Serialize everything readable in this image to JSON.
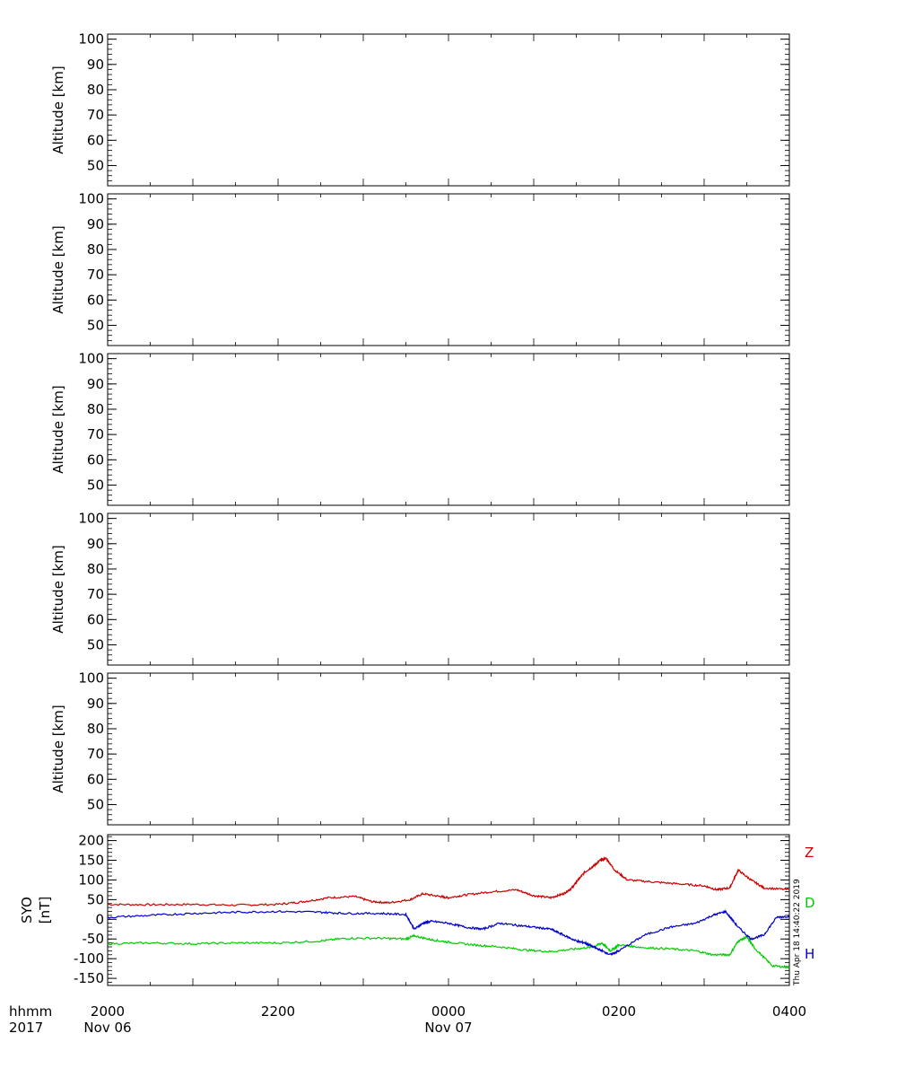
{
  "chart_data": [
    {
      "type": "heatmap",
      "ylabel": "Altitude  [km]",
      "yticks": [
        50,
        60,
        70,
        80,
        90,
        100
      ],
      "ylim": [
        42,
        102
      ],
      "xlim_hours": [
        20,
        28
      ],
      "data": []
    },
    {
      "type": "heatmap",
      "ylabel": "Altitude  [km]",
      "yticks": [
        50,
        60,
        70,
        80,
        90,
        100
      ],
      "ylim": [
        42,
        102
      ],
      "xlim_hours": [
        20,
        28
      ],
      "data": []
    },
    {
      "type": "heatmap",
      "ylabel": "Altitude  [km]",
      "yticks": [
        50,
        60,
        70,
        80,
        90,
        100
      ],
      "ylim": [
        42,
        102
      ],
      "xlim_hours": [
        20,
        28
      ],
      "data": []
    },
    {
      "type": "heatmap",
      "ylabel": "Altitude  [km]",
      "yticks": [
        50,
        60,
        70,
        80,
        90,
        100
      ],
      "ylim": [
        42,
        102
      ],
      "xlim_hours": [
        20,
        28
      ],
      "data": []
    },
    {
      "type": "heatmap",
      "ylabel": "Altitude  [km]",
      "yticks": [
        50,
        60,
        70,
        80,
        90,
        100
      ],
      "ylim": [
        42,
        102
      ],
      "xlim_hours": [
        20,
        28
      ],
      "data": []
    },
    {
      "type": "line",
      "ylabel_station": "SYO",
      "ylabel_unit": "[nT]",
      "yticks": [
        -150,
        -100,
        -50,
        0,
        50,
        100,
        150,
        200
      ],
      "ylim": [
        -168,
        215
      ],
      "xlim_hours": [
        20,
        28
      ],
      "series": [
        {
          "name": "Z",
          "color": "#cc0000",
          "x": [
            20.0,
            20.5,
            21.0,
            21.5,
            22.0,
            22.3,
            22.6,
            22.9,
            23.1,
            23.3,
            23.55,
            23.7,
            23.9,
            24.0,
            24.2,
            24.5,
            24.8,
            25.0,
            25.2,
            25.35,
            25.45,
            25.52,
            25.6,
            25.7,
            25.78,
            25.85,
            25.95,
            26.1,
            26.4,
            26.7,
            27.0,
            27.15,
            27.3,
            27.4,
            27.55,
            27.7,
            28.0
          ],
          "y": [
            38,
            37,
            38,
            36,
            38,
            45,
            55,
            58,
            45,
            42,
            50,
            65,
            58,
            55,
            62,
            70,
            75,
            60,
            55,
            65,
            80,
            100,
            120,
            135,
            150,
            155,
            125,
            100,
            95,
            90,
            85,
            75,
            80,
            125,
            100,
            80,
            75
          ]
        },
        {
          "name": "D",
          "color": "#00cc00",
          "x": [
            20.0,
            20.5,
            21.0,
            21.5,
            22.0,
            22.5,
            22.8,
            23.2,
            23.5,
            23.6,
            23.8,
            24.0,
            24.3,
            24.6,
            24.9,
            25.2,
            25.5,
            25.7,
            25.8,
            25.9,
            26.0,
            26.3,
            26.6,
            26.9,
            27.1,
            27.3,
            27.4,
            27.5,
            27.6,
            27.8,
            28.0
          ],
          "y": [
            -62,
            -60,
            -62,
            -60,
            -60,
            -55,
            -48,
            -48,
            -50,
            -42,
            -52,
            -58,
            -65,
            -70,
            -78,
            -82,
            -75,
            -70,
            -60,
            -80,
            -65,
            -72,
            -75,
            -80,
            -90,
            -90,
            -55,
            -45,
            -75,
            -118,
            -122
          ]
        },
        {
          "name": "H",
          "color": "#0000cc",
          "x": [
            20.0,
            20.5,
            21.0,
            21.5,
            22.0,
            22.5,
            22.8,
            23.2,
            23.5,
            23.6,
            23.7,
            23.8,
            24.0,
            24.2,
            24.4,
            24.6,
            24.8,
            25.0,
            25.2,
            25.35,
            25.5,
            25.6,
            25.7,
            25.8,
            25.9,
            26.0,
            26.3,
            26.6,
            26.9,
            27.1,
            27.25,
            27.4,
            27.55,
            27.7,
            27.85,
            28.0
          ],
          "y": [
            5,
            10,
            15,
            18,
            20,
            18,
            15,
            15,
            12,
            -25,
            -10,
            -5,
            -10,
            -20,
            -25,
            -10,
            -15,
            -20,
            -25,
            -40,
            -55,
            -60,
            -70,
            -80,
            -90,
            -80,
            -40,
            -20,
            -10,
            10,
            20,
            -20,
            -50,
            -40,
            5,
            8
          ]
        }
      ]
    }
  ],
  "x_axis": {
    "row1_label": "hhmm",
    "row2_label": "2017",
    "ticks": [
      {
        "hour": 20,
        "time": "2000",
        "date": "Nov 06"
      },
      {
        "hour": 22,
        "time": "2200",
        "date": ""
      },
      {
        "hour": 24,
        "time": "0000",
        "date": "Nov 07"
      },
      {
        "hour": 26,
        "time": "0200",
        "date": ""
      },
      {
        "hour": 28,
        "time": "0400",
        "date": ""
      }
    ]
  },
  "timestamp": "Thu Apr 18 14:40:22 2019"
}
